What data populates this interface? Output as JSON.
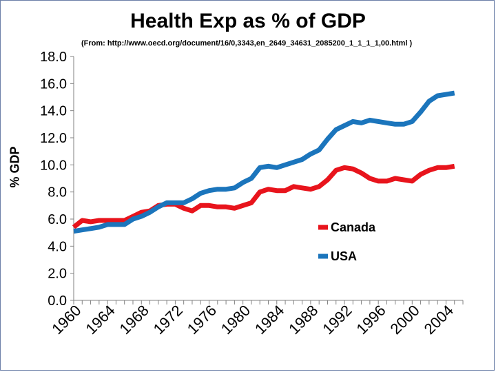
{
  "chart_data": {
    "type": "line",
    "title": "Health Exp as % of GDP",
    "subtitle": "(From: http://www.oecd.org/document/16/0,3343,en_2649_34631_2085200_1_1_1_1,00.html )",
    "ylabel": "% GDP",
    "xlabel": "",
    "ylim": [
      0,
      18
    ],
    "yticks": [
      "0.0",
      "2.0",
      "4.0",
      "6.0",
      "8.0",
      "10.0",
      "12.0",
      "14.0",
      "16.0",
      "18.0"
    ],
    "xtick_labels": [
      "1960",
      "1964",
      "1968",
      "1972",
      "1976",
      "1980",
      "1984",
      "1988",
      "1992",
      "1996",
      "2000",
      "2004"
    ],
    "x": [
      1960,
      1961,
      1962,
      1963,
      1964,
      1965,
      1966,
      1967,
      1968,
      1969,
      1970,
      1971,
      1972,
      1973,
      1974,
      1975,
      1976,
      1977,
      1978,
      1979,
      1980,
      1981,
      1982,
      1983,
      1984,
      1985,
      1986,
      1987,
      1988,
      1989,
      1990,
      1991,
      1992,
      1993,
      1994,
      1995,
      1996,
      1997,
      1998,
      1999,
      2000,
      2001,
      2002,
      2003,
      2004,
      2005
    ],
    "series": [
      {
        "name": "Canada",
        "color": "#e8141c",
        "values": [
          5.4,
          5.9,
          5.8,
          5.9,
          5.9,
          5.9,
          5.9,
          6.2,
          6.5,
          6.6,
          7.0,
          7.1,
          7.1,
          6.8,
          6.6,
          7.0,
          7.0,
          6.9,
          6.9,
          6.8,
          7.0,
          7.2,
          8.0,
          8.2,
          8.1,
          8.1,
          8.4,
          8.3,
          8.2,
          8.4,
          8.9,
          9.6,
          9.8,
          9.7,
          9.4,
          9.0,
          8.8,
          8.8,
          9.0,
          8.9,
          8.8,
          9.3,
          9.6,
          9.8,
          9.8,
          9.9
        ]
      },
      {
        "name": "USA",
        "color": "#1b75bc",
        "values": [
          5.1,
          5.2,
          5.3,
          5.4,
          5.6,
          5.6,
          5.6,
          6.0,
          6.2,
          6.5,
          6.9,
          7.2,
          7.2,
          7.2,
          7.5,
          7.9,
          8.1,
          8.2,
          8.2,
          8.3,
          8.7,
          9.0,
          9.8,
          9.9,
          9.8,
          10.0,
          10.2,
          10.4,
          10.8,
          11.1,
          11.9,
          12.6,
          12.9,
          13.2,
          13.1,
          13.3,
          13.2,
          13.1,
          13.0,
          13.0,
          13.2,
          13.9,
          14.7,
          15.1,
          15.2,
          15.3
        ]
      }
    ],
    "legend": [
      "Canada",
      "USA"
    ],
    "legend_position": "right, below lines"
  }
}
